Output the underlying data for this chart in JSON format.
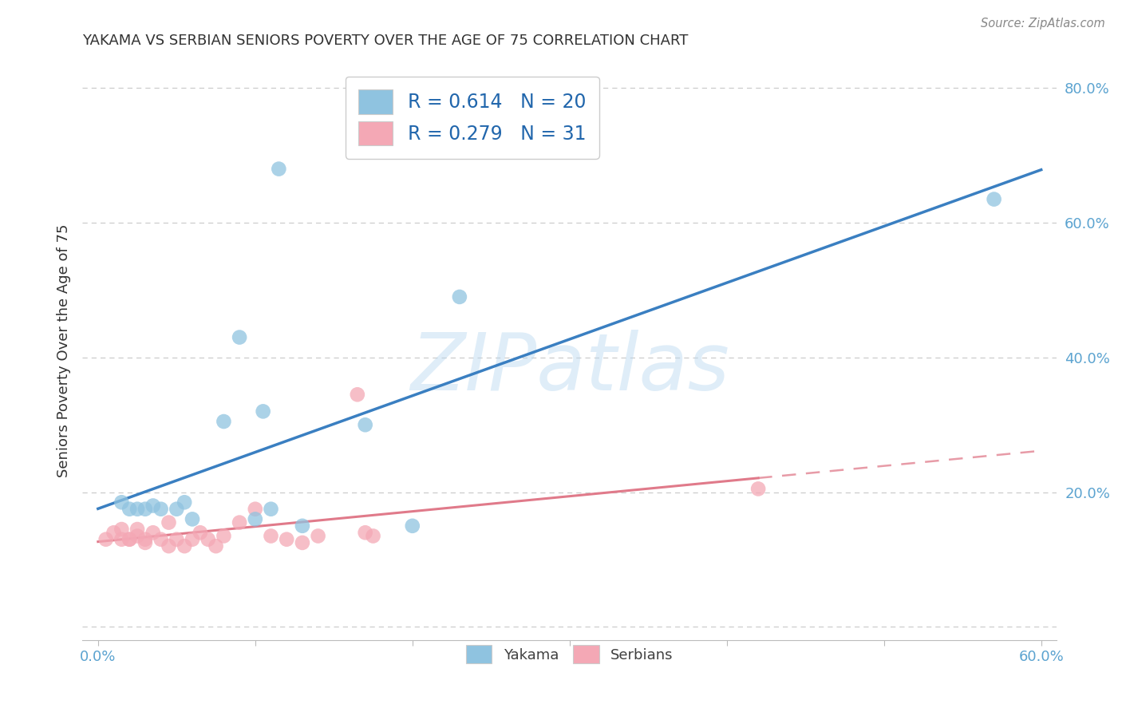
{
  "title": "YAKAMA VS SERBIAN SENIORS POVERTY OVER THE AGE OF 75 CORRELATION CHART",
  "source": "Source: ZipAtlas.com",
  "ylabel": "Seniors Poverty Over the Age of 75",
  "xlabel": "",
  "watermark": "ZIPatlas",
  "xlim": [
    -0.01,
    0.61
  ],
  "ylim": [
    -0.02,
    0.84
  ],
  "xtick_positions": [
    0.0,
    0.1,
    0.2,
    0.3,
    0.4,
    0.5,
    0.6
  ],
  "xticklabels_visible": {
    "0.0": "0.0%",
    "0.6": "60.0%"
  },
  "ytick_positions": [
    0.0,
    0.2,
    0.4,
    0.6,
    0.8
  ],
  "yticklabels": [
    "",
    "20.0%",
    "40.0%",
    "60.0%",
    "80.0%"
  ],
  "yakama_color": "#8fc3e0",
  "serbian_color": "#f4a8b5",
  "yakama_line_color": "#3a7fc1",
  "serbian_line_color": "#e07a8a",
  "yakama_scatter": [
    [
      0.015,
      0.185
    ],
    [
      0.02,
      0.175
    ],
    [
      0.025,
      0.175
    ],
    [
      0.03,
      0.175
    ],
    [
      0.035,
      0.18
    ],
    [
      0.04,
      0.175
    ],
    [
      0.05,
      0.175
    ],
    [
      0.055,
      0.185
    ],
    [
      0.06,
      0.16
    ],
    [
      0.08,
      0.305
    ],
    [
      0.09,
      0.43
    ],
    [
      0.1,
      0.16
    ],
    [
      0.105,
      0.32
    ],
    [
      0.11,
      0.175
    ],
    [
      0.115,
      0.68
    ],
    [
      0.13,
      0.15
    ],
    [
      0.17,
      0.3
    ],
    [
      0.2,
      0.15
    ],
    [
      0.23,
      0.49
    ],
    [
      0.57,
      0.635
    ]
  ],
  "serbian_scatter": [
    [
      0.005,
      0.13
    ],
    [
      0.01,
      0.14
    ],
    [
      0.015,
      0.145
    ],
    [
      0.015,
      0.13
    ],
    [
      0.02,
      0.13
    ],
    [
      0.02,
      0.13
    ],
    [
      0.025,
      0.145
    ],
    [
      0.025,
      0.135
    ],
    [
      0.03,
      0.13
    ],
    [
      0.03,
      0.125
    ],
    [
      0.035,
      0.14
    ],
    [
      0.04,
      0.13
    ],
    [
      0.045,
      0.12
    ],
    [
      0.045,
      0.155
    ],
    [
      0.05,
      0.13
    ],
    [
      0.055,
      0.12
    ],
    [
      0.06,
      0.13
    ],
    [
      0.065,
      0.14
    ],
    [
      0.07,
      0.13
    ],
    [
      0.075,
      0.12
    ],
    [
      0.08,
      0.135
    ],
    [
      0.09,
      0.155
    ],
    [
      0.1,
      0.175
    ],
    [
      0.11,
      0.135
    ],
    [
      0.12,
      0.13
    ],
    [
      0.13,
      0.125
    ],
    [
      0.14,
      0.135
    ],
    [
      0.165,
      0.345
    ],
    [
      0.17,
      0.14
    ],
    [
      0.175,
      0.135
    ],
    [
      0.42,
      0.205
    ]
  ],
  "legend_r_n": [
    {
      "R": "0.614",
      "N": "20",
      "color": "#8fc3e0"
    },
    {
      "R": "0.279",
      "N": "31",
      "color": "#f4a8b5"
    }
  ],
  "background_color": "#ffffff",
  "grid_color": "#cccccc",
  "title_color": "#333333",
  "axis_label_color": "#333333",
  "tick_color": "#5ba3d0",
  "legend_text_color": "#2166ac",
  "figsize": [
    14.06,
    8.92
  ],
  "dpi": 100
}
